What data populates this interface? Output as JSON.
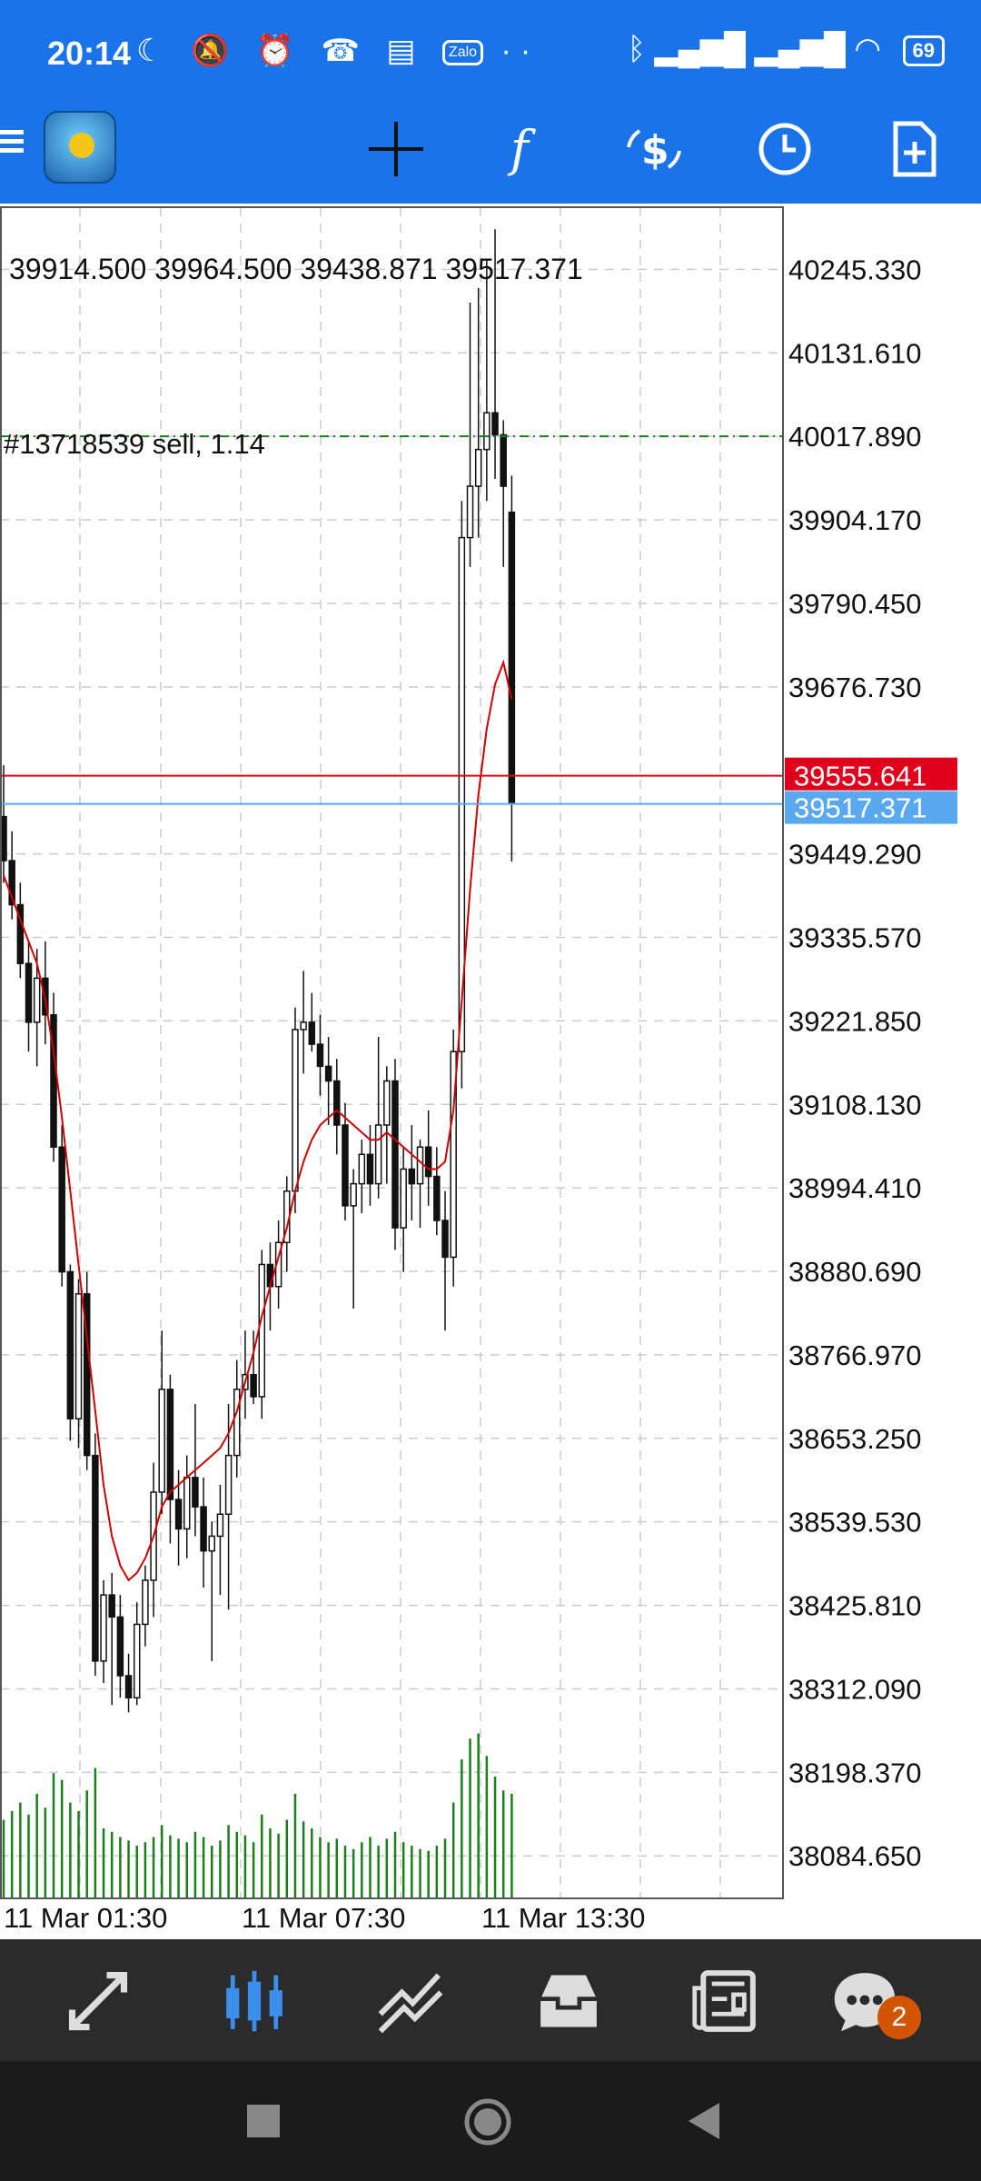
{
  "status_bar": {
    "time": "20:14",
    "zalo": "Zalo",
    "battery": "69",
    "left_icons": [
      "moon-icon",
      "bell-off-icon",
      "alarm-icon",
      "missed-call-icon",
      "news-icon",
      "zalo-icon",
      "more-dots-icon"
    ],
    "right_icons": [
      "bluetooth-icon",
      "signal-icon",
      "signal-icon",
      "wifi-icon",
      "battery-icon"
    ]
  },
  "toolbar": {
    "icons": [
      "menu-icon",
      "app-logo",
      "crosshair-icon",
      "function-icon",
      "trade-icon",
      "clock-icon",
      "new-order-icon"
    ]
  },
  "chart": {
    "ohlc": "39914.500 39964.500 39438.871 39517.371",
    "order_label": "#13718539 sell, 1.14",
    "order_price": 40017.89,
    "ask_price": "39555.641",
    "bid_price": "39517.371",
    "price_labels": [
      "40245.330",
      "40131.610",
      "40017.890",
      "39904.170",
      "39790.450",
      "39676.730",
      "39449.290",
      "39335.570",
      "39221.850",
      "39108.130",
      "38994.410",
      "38880.690",
      "38766.970",
      "38653.250",
      "38539.530",
      "38425.810",
      "38312.090",
      "38198.370",
      "38084.650"
    ],
    "time_labels": [
      "11 Mar 01:30",
      "11 Mar 07:30",
      "11 Mar 13:30"
    ],
    "colors": {
      "ask": "#e0001b",
      "bid": "#5aa9f0",
      "ma": "#d00000",
      "order_line": "#1a7f1a",
      "volume": "#1a7f1a",
      "grid": "#c8c8c8"
    }
  },
  "chart_data": {
    "type": "candlestick",
    "ylim": [
      38028,
      40330
    ],
    "candles": [
      [
        39500,
        39570,
        39410,
        39440
      ],
      [
        39440,
        39480,
        39360,
        39380
      ],
      [
        39380,
        39410,
        39280,
        39300
      ],
      [
        39300,
        39330,
        39180,
        39220
      ],
      [
        39220,
        39320,
        39160,
        39280
      ],
      [
        39280,
        39330,
        39190,
        39230
      ],
      [
        39230,
        39260,
        39030,
        39050
      ],
      [
        39050,
        39080,
        38860,
        38880
      ],
      [
        38880,
        38890,
        38650,
        38680
      ],
      [
        38680,
        38870,
        38640,
        38850
      ],
      [
        38850,
        38880,
        38610,
        38630
      ],
      [
        38630,
        38660,
        38330,
        38350
      ],
      [
        38350,
        38460,
        38320,
        38440
      ],
      [
        38440,
        38470,
        38290,
        38410
      ],
      [
        38410,
        38440,
        38300,
        38330
      ],
      [
        38330,
        38360,
        38280,
        38300
      ],
      [
        38300,
        38430,
        38290,
        38400
      ],
      [
        38400,
        38480,
        38370,
        38460
      ],
      [
        38460,
        38620,
        38410,
        38580
      ],
      [
        38580,
        38800,
        38550,
        38720
      ],
      [
        38720,
        38740,
        38510,
        38570
      ],
      [
        38570,
        38610,
        38480,
        38530
      ],
      [
        38530,
        38630,
        38490,
        38600
      ],
      [
        38600,
        38700,
        38520,
        38560
      ],
      [
        38560,
        38600,
        38450,
        38500
      ],
      [
        38500,
        38540,
        38350,
        38520
      ],
      [
        38520,
        38590,
        38440,
        38550
      ],
      [
        38550,
        38700,
        38420,
        38630
      ],
      [
        38630,
        38760,
        38600,
        38720
      ],
      [
        38720,
        38800,
        38680,
        38740
      ],
      [
        38740,
        38800,
        38700,
        38710
      ],
      [
        38710,
        38910,
        38680,
        38890
      ],
      [
        38890,
        38920,
        38800,
        38860
      ],
      [
        38860,
        38950,
        38830,
        38920
      ],
      [
        38920,
        39010,
        38880,
        38990
      ],
      [
        38990,
        39240,
        38960,
        39210
      ],
      [
        39210,
        39290,
        39150,
        39220
      ],
      [
        39220,
        39260,
        39180,
        39190
      ],
      [
        39190,
        39230,
        39120,
        39160
      ],
      [
        39160,
        39200,
        39080,
        39140
      ],
      [
        39140,
        39170,
        39040,
        39080
      ],
      [
        39080,
        39110,
        38950,
        38970
      ],
      [
        38970,
        39020,
        38830,
        39000
      ],
      [
        39000,
        39060,
        38960,
        39040
      ],
      [
        39040,
        39080,
        38970,
        39000
      ],
      [
        39000,
        39200,
        38980,
        39080
      ],
      [
        39080,
        39160,
        39000,
        39140
      ],
      [
        39140,
        39170,
        38910,
        38940
      ],
      [
        38940,
        39050,
        38880,
        39020
      ],
      [
        39020,
        39080,
        38950,
        39000
      ],
      [
        39000,
        39060,
        38940,
        39050
      ],
      [
        39050,
        39100,
        38970,
        39010
      ],
      [
        39010,
        39050,
        38930,
        38950
      ],
      [
        38950,
        38990,
        38800,
        38900
      ],
      [
        38900,
        39210,
        38860,
        39180
      ],
      [
        39180,
        39930,
        39130,
        39880
      ],
      [
        39880,
        40200,
        39840,
        39950
      ],
      [
        39950,
        40220,
        39880,
        40000
      ],
      [
        40000,
        40260,
        39930,
        40050
      ],
      [
        40050,
        40300,
        39960,
        40020
      ],
      [
        40020,
        40040,
        39840,
        39950
      ],
      [
        39914.5,
        39964.5,
        39438.871,
        39517.371
      ]
    ],
    "ma": [
      39420,
      39390,
      39360,
      39330,
      39300,
      39250,
      39180,
      39090,
      38990,
      38890,
      38790,
      38690,
      38590,
      38520,
      38480,
      38460,
      38470,
      38490,
      38520,
      38560,
      38580,
      38590,
      38600,
      38610,
      38620,
      38630,
      38640,
      38660,
      38690,
      38730,
      38770,
      38820,
      38860,
      38900,
      38940,
      38990,
      39030,
      39060,
      39080,
      39090,
      39100,
      39090,
      39080,
      39070,
      39060,
      39060,
      39070,
      39060,
      39050,
      39040,
      39030,
      39020,
      39020,
      39030,
      39100,
      39250,
      39400,
      39530,
      39620,
      39680,
      39710,
      39660
    ],
    "volumes": [
      0.45,
      0.5,
      0.55,
      0.48,
      0.6,
      0.52,
      0.72,
      0.68,
      0.55,
      0.5,
      0.62,
      0.75,
      0.4,
      0.38,
      0.35,
      0.33,
      0.3,
      0.32,
      0.35,
      0.42,
      0.36,
      0.34,
      0.32,
      0.38,
      0.35,
      0.3,
      0.33,
      0.42,
      0.38,
      0.36,
      0.32,
      0.48,
      0.4,
      0.37,
      0.45,
      0.6,
      0.44,
      0.4,
      0.35,
      0.32,
      0.34,
      0.3,
      0.28,
      0.32,
      0.35,
      0.3,
      0.34,
      0.38,
      0.32,
      0.3,
      0.28,
      0.27,
      0.3,
      0.34,
      0.55,
      0.8,
      0.92,
      0.95,
      0.82,
      0.7,
      0.62,
      0.6
    ]
  },
  "bottom_nav": {
    "icons": [
      "quotes-icon",
      "chart-icon",
      "trade-icon",
      "history-icon",
      "news-icon",
      "chat-icon"
    ],
    "chat_badge": "2"
  },
  "nav_bar": {
    "icons": [
      "recents-icon",
      "home-icon",
      "back-icon"
    ]
  }
}
